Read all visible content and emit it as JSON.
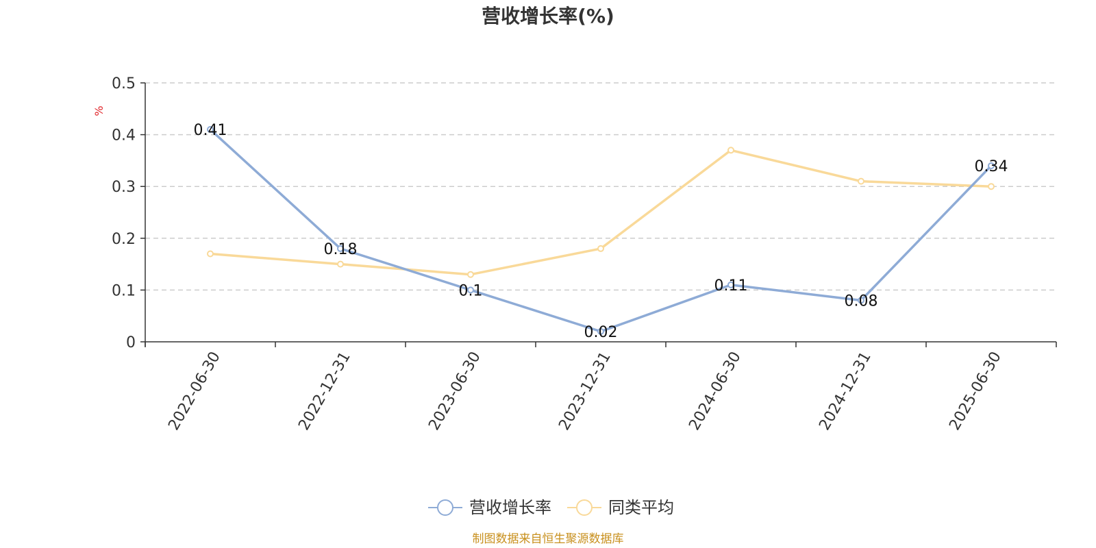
{
  "title": "营收增长率(%)",
  "source": "制图数据来自恒生聚源数据库",
  "colors": {
    "series_main": "#8eabd6",
    "series_avg": "#f9d999",
    "unit": "#e0252a",
    "source": "#c8901e",
    "grid": "#cccccc",
    "axis": "#333333"
  },
  "chart_data": {
    "type": "line",
    "title": "营收增长率(%)",
    "ylabel": "%",
    "xlabel": "",
    "ylim": [
      0,
      0.5
    ],
    "yticks": [
      0,
      0.1,
      0.2,
      0.3,
      0.4,
      0.5
    ],
    "ytick_labels": [
      "0",
      "0.1",
      "0.2",
      "0.3",
      "0.4",
      "0.5"
    ],
    "grid": true,
    "legend_position": "bottom-center",
    "categories": [
      "2022-06-30",
      "2022-12-31",
      "2023-06-30",
      "2023-12-31",
      "2024-06-30",
      "2024-12-31",
      "2025-06-30"
    ],
    "series": [
      {
        "name": "营收增长率",
        "values": [
          0.41,
          0.18,
          0.1,
          0.02,
          0.11,
          0.08,
          0.34
        ],
        "labels": [
          "0.41",
          "0.18",
          "0.1",
          "0.02",
          "0.11",
          "0.08",
          "0.34"
        ],
        "show_labels": true
      },
      {
        "name": "同类平均",
        "values": [
          0.17,
          0.15,
          0.13,
          0.18,
          0.37,
          0.31,
          0.3
        ],
        "show_labels": false
      }
    ]
  }
}
